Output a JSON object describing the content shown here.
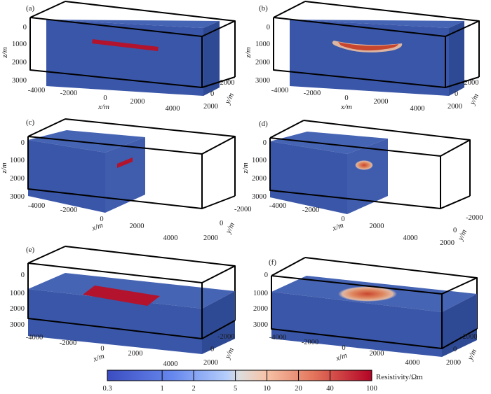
{
  "panels": [
    {
      "id": "a",
      "label": "(a)",
      "kind": "slab-block",
      "anomaly": "true"
    },
    {
      "id": "b",
      "label": "(b)",
      "kind": "slab-block",
      "anomaly": "inverted"
    },
    {
      "id": "c",
      "label": "(c)",
      "kind": "cut-block",
      "anomaly": "true"
    },
    {
      "id": "d",
      "label": "(d)",
      "kind": "cut-block",
      "anomaly": "inverted"
    },
    {
      "id": "e",
      "label": "(e)",
      "kind": "flat-block",
      "anomaly": "true"
    },
    {
      "id": "f",
      "label": "(f)",
      "kind": "flat-block",
      "anomaly": "inverted"
    }
  ],
  "axes": {
    "x_label": "x/m",
    "y_label": "y/m",
    "z_label": "z/m",
    "x_ticks": [
      "-4000",
      "-2000",
      "0",
      "2000",
      "4000"
    ],
    "y_ticks": [
      "-2000",
      "0",
      "2000"
    ],
    "z_ticks": [
      "0",
      "1000",
      "2000",
      "3000"
    ]
  },
  "colorbar": {
    "title": "Resistivity/Ωm",
    "ticks": [
      "0.3",
      "1",
      "2",
      "5",
      "10",
      "20",
      "40",
      "100"
    ],
    "scale": "log",
    "range": [
      0.3,
      100
    ]
  },
  "colors": {
    "background_block": "#3a56a8",
    "background_top": "#4664b4",
    "background_side": "#2f4a94",
    "anomaly_true": "#b3132c",
    "anomaly_inverted_core": "#c8462e",
    "anomaly_inverted_halo": "#f0c0a0",
    "frame": "#000000"
  }
}
